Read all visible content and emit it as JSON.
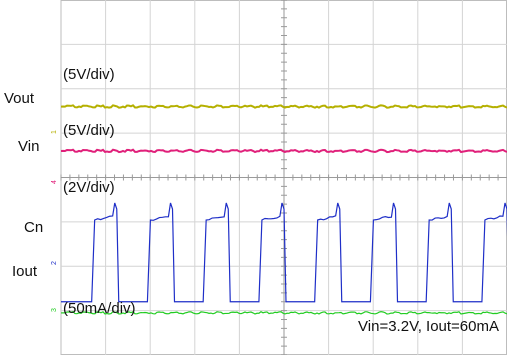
{
  "chart_data": {
    "type": "line",
    "title": "",
    "grid": true,
    "x_divisions": 10,
    "y_divisions": 8,
    "channel_labels": [
      "Vout",
      "Vin",
      "Cn",
      "Iout"
    ],
    "scale_labels": [
      "(5V/div)",
      "(5V/div)",
      "(2V/div)",
      "(50mA/div)"
    ],
    "annotation": "Vin=3.2V, Iout=60mA",
    "ground_markers": [
      "1",
      "4",
      "2",
      "3"
    ],
    "series": [
      {
        "name": "Vout",
        "color": "#b5b000",
        "description": "constant level",
        "level_div": 5.6
      },
      {
        "name": "Vin",
        "color": "#e0207a",
        "description": "constant level",
        "level_div": 4.6
      },
      {
        "name": "Cn",
        "color": "#1f2fc8",
        "description": "square wave",
        "low_div": 1.2,
        "high_div": 3.2,
        "periods_shown": 8
      },
      {
        "name": "Iout",
        "color": "#22cc22",
        "description": "constant level",
        "level_div": 0.95
      }
    ]
  }
}
